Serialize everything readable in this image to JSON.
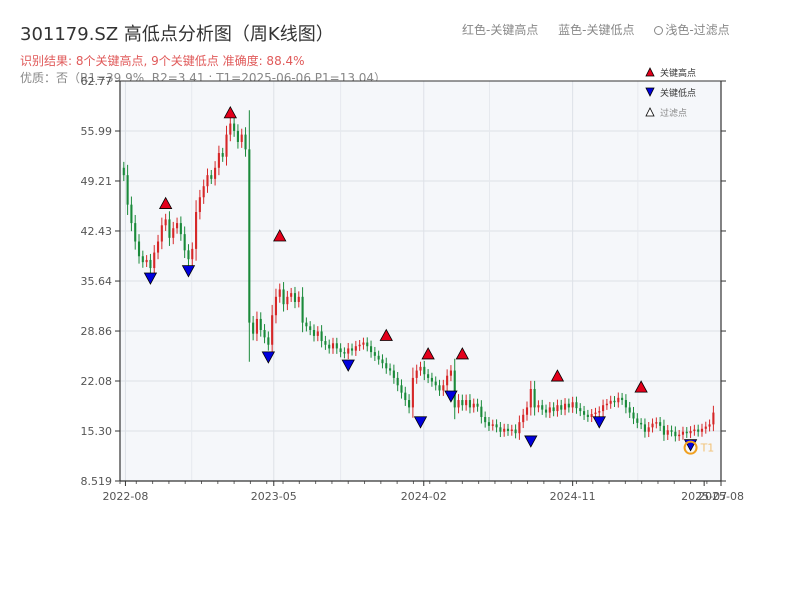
{
  "title": "301179.SZ 高低点分析图（周K线图）",
  "header_legend": {
    "red": "红色-关键高点",
    "blue": "蓝色-关键低点",
    "light": "浅色-过滤点"
  },
  "result_line": "识别结果: 8个关键高点, 9个关键低点  准确度: 88.4%",
  "quality_line": "优质：否（R1=39.9%, R2=3.41 ; T1=2025-06-06 P1=13.04）",
  "chart_data": {
    "type": "candlestick",
    "ylim": [
      8.519,
      62.77
    ],
    "yticks": [
      "62.77",
      "55.99",
      "49.21",
      "42.43",
      "35.64",
      "28.86",
      "22.08",
      "15.30",
      "8.519"
    ],
    "xticks": [
      "2022-08",
      "2023-05",
      "2024-02",
      "2024-11",
      "2025-07",
      "2025-08"
    ],
    "colors": {
      "up": "#d62728",
      "down": "#1a8a3a",
      "high": "#e3001b",
      "low": "#0000dd",
      "t1": "#f0a020"
    },
    "legend": [
      {
        "label": "关键高点",
        "marker": "triangle-up",
        "color": "#e3001b"
      },
      {
        "label": "关键低点",
        "marker": "triangle-down",
        "color": "#0000dd"
      },
      {
        "label": "过滤点",
        "marker": "triangle-up",
        "color": "#ffffff"
      }
    ],
    "key_highs": [
      {
        "date": "2022-10-14",
        "value": 45.2
      },
      {
        "date": "2023-02-10",
        "value": 57.5
      },
      {
        "date": "2023-05-12",
        "value": 40.8
      },
      {
        "date": "2023-11-24",
        "value": 27.3
      },
      {
        "date": "2024-02-09",
        "value": 24.8
      },
      {
        "date": "2024-04-12",
        "value": 24.8
      },
      {
        "date": "2024-10-04",
        "value": 21.8
      },
      {
        "date": "2025-03-07",
        "value": 20.3
      }
    ],
    "key_lows": [
      {
        "date": "2022-09-16",
        "value": 37.0
      },
      {
        "date": "2022-11-25",
        "value": 38.0
      },
      {
        "date": "2023-04-21",
        "value": 26.3
      },
      {
        "date": "2023-09-15",
        "value": 25.2
      },
      {
        "date": "2024-01-26",
        "value": 17.5
      },
      {
        "date": "2024-03-22",
        "value": 21.0
      },
      {
        "date": "2024-08-16",
        "value": 14.9
      },
      {
        "date": "2024-12-20",
        "value": 17.5
      },
      {
        "date": "2025-06-06",
        "value": 14.4
      }
    ],
    "t1_marker": {
      "date": "2025-06-06",
      "value": 13.04,
      "label": "T1"
    },
    "closes": [
      [
        "2022-07-29",
        50.0
      ],
      [
        "2022-08-05",
        46.0
      ],
      [
        "2022-08-12",
        43.5
      ],
      [
        "2022-08-19",
        41.0
      ],
      [
        "2022-08-26",
        39.0
      ],
      [
        "2022-09-02",
        38.2
      ],
      [
        "2022-09-09",
        38.5
      ],
      [
        "2022-09-16",
        37.4
      ],
      [
        "2022-09-23",
        39.5
      ],
      [
        "2022-09-30",
        41.0
      ],
      [
        "2022-10-07",
        43.2
      ],
      [
        "2022-10-14",
        44.0
      ],
      [
        "2022-10-21",
        41.5
      ],
      [
        "2022-10-28",
        42.8
      ],
      [
        "2022-11-04",
        43.5
      ],
      [
        "2022-11-11",
        42.0
      ],
      [
        "2022-11-18",
        39.8
      ],
      [
        "2022-11-25",
        38.6
      ],
      [
        "2022-12-02",
        40.0
      ],
      [
        "2022-12-09",
        45.0
      ],
      [
        "2022-12-16",
        47.0
      ],
      [
        "2022-12-23",
        48.5
      ],
      [
        "2022-12-30",
        50.0
      ],
      [
        "2023-01-06",
        49.5
      ],
      [
        "2023-01-13",
        51.0
      ],
      [
        "2023-01-20",
        53.0
      ],
      [
        "2023-01-27",
        52.5
      ],
      [
        "2023-02-03",
        55.5
      ],
      [
        "2023-02-10",
        57.0
      ],
      [
        "2023-02-17",
        56.0
      ],
      [
        "2023-02-24",
        54.5
      ],
      [
        "2023-03-03",
        55.5
      ],
      [
        "2023-03-10",
        53.5
      ],
      [
        "2023-03-17",
        30.0
      ],
      [
        "2023-03-24",
        28.5
      ],
      [
        "2023-03-31",
        30.5
      ],
      [
        "2023-04-07",
        29.0
      ],
      [
        "2023-04-14",
        28.0
      ],
      [
        "2023-04-21",
        27.0
      ],
      [
        "2023-04-28",
        31.0
      ],
      [
        "2023-05-05",
        33.5
      ],
      [
        "2023-05-12",
        34.5
      ],
      [
        "2023-05-19",
        32.5
      ],
      [
        "2023-05-26",
        33.5
      ],
      [
        "2023-06-02",
        34.0
      ],
      [
        "2023-06-09",
        32.8
      ],
      [
        "2023-06-16",
        33.5
      ],
      [
        "2023-06-23",
        30.0
      ],
      [
        "2023-06-30",
        29.5
      ],
      [
        "2023-07-07",
        29.0
      ],
      [
        "2023-07-14",
        28.2
      ],
      [
        "2023-07-21",
        28.8
      ],
      [
        "2023-07-28",
        27.5
      ],
      [
        "2023-08-04",
        27.0
      ],
      [
        "2023-08-11",
        26.5
      ],
      [
        "2023-08-18",
        27.2
      ],
      [
        "2023-08-25",
        26.5
      ],
      [
        "2023-09-01",
        26.0
      ],
      [
        "2023-09-08",
        25.8
      ],
      [
        "2023-09-15",
        26.5
      ],
      [
        "2023-09-22",
        26.2
      ],
      [
        "2023-09-29",
        26.8
      ],
      [
        "2023-10-06",
        27.0
      ],
      [
        "2023-10-13",
        27.3
      ],
      [
        "2023-10-20",
        26.8
      ],
      [
        "2023-10-27",
        26.0
      ],
      [
        "2023-11-03",
        25.5
      ],
      [
        "2023-11-10",
        25.0
      ],
      [
        "2023-11-17",
        24.5
      ],
      [
        "2023-11-24",
        23.8
      ],
      [
        "2023-12-01",
        23.5
      ],
      [
        "2023-12-08",
        22.5
      ],
      [
        "2023-12-15",
        21.5
      ],
      [
        "2023-12-22",
        20.5
      ],
      [
        "2023-12-29",
        19.5
      ],
      [
        "2024-01-05",
        18.5
      ],
      [
        "2024-01-12",
        22.5
      ],
      [
        "2024-01-19",
        23.5
      ],
      [
        "2024-01-26",
        24.0
      ],
      [
        "2024-02-02",
        23.0
      ],
      [
        "2024-02-09",
        22.5
      ],
      [
        "2024-02-16",
        22.0
      ],
      [
        "2024-02-23",
        21.5
      ],
      [
        "2024-03-01",
        20.8
      ],
      [
        "2024-03-08",
        21.5
      ],
      [
        "2024-03-15",
        22.8
      ],
      [
        "2024-03-22",
        23.5
      ],
      [
        "2024-03-29",
        18.5
      ],
      [
        "2024-04-05",
        19.5
      ],
      [
        "2024-04-12",
        18.8
      ],
      [
        "2024-04-19",
        19.5
      ],
      [
        "2024-04-26",
        18.5
      ],
      [
        "2024-05-03",
        19.0
      ],
      [
        "2024-05-10",
        18.6
      ],
      [
        "2024-05-17",
        17.2
      ],
      [
        "2024-05-24",
        16.5
      ],
      [
        "2024-05-31",
        16.0
      ],
      [
        "2024-06-07",
        16.2
      ],
      [
        "2024-06-14",
        15.8
      ],
      [
        "2024-06-21",
        15.2
      ],
      [
        "2024-06-28",
        15.6
      ],
      [
        "2024-07-05",
        15.3
      ],
      [
        "2024-07-12",
        15.5
      ],
      [
        "2024-07-19",
        15.0
      ],
      [
        "2024-07-26",
        16.5
      ],
      [
        "2024-08-02",
        17.5
      ],
      [
        "2024-08-09",
        18.5
      ],
      [
        "2024-08-16",
        21.0
      ],
      [
        "2024-08-23",
        18.5
      ],
      [
        "2024-08-30",
        18.8
      ],
      [
        "2024-09-06",
        18.2
      ],
      [
        "2024-09-13",
        17.8
      ],
      [
        "2024-09-20",
        18.5
      ],
      [
        "2024-09-27",
        18.0
      ],
      [
        "2024-10-04",
        18.8
      ],
      [
        "2024-10-11",
        18.2
      ],
      [
        "2024-10-18",
        19.0
      ],
      [
        "2024-10-25",
        18.5
      ],
      [
        "2024-11-01",
        19.2
      ],
      [
        "2024-11-08",
        18.4
      ],
      [
        "2024-11-15",
        18.0
      ],
      [
        "2024-11-22",
        17.5
      ],
      [
        "2024-11-29",
        17.2
      ],
      [
        "2024-12-06",
        17.6
      ],
      [
        "2024-12-13",
        17.8
      ],
      [
        "2024-12-20",
        18.0
      ],
      [
        "2024-12-27",
        18.8
      ],
      [
        "2025-01-03",
        19.0
      ],
      [
        "2025-01-10",
        19.4
      ],
      [
        "2025-01-17",
        19.2
      ],
      [
        "2025-01-24",
        19.8
      ],
      [
        "2025-01-31",
        19.5
      ],
      [
        "2025-02-07",
        18.5
      ],
      [
        "2025-02-14",
        17.8
      ],
      [
        "2025-02-21",
        17.0
      ],
      [
        "2025-02-28",
        16.4
      ],
      [
        "2025-03-07",
        16.2
      ],
      [
        "2025-03-14",
        15.2
      ],
      [
        "2025-03-21",
        15.8
      ],
      [
        "2025-03-28",
        16.3
      ],
      [
        "2025-04-04",
        16.5
      ],
      [
        "2025-04-11",
        16.0
      ],
      [
        "2025-04-18",
        14.8
      ],
      [
        "2025-04-25",
        15.4
      ],
      [
        "2025-05-02",
        15.2
      ],
      [
        "2025-05-09",
        14.6
      ],
      [
        "2025-05-16",
        14.8
      ],
      [
        "2025-05-23",
        15.2
      ],
      [
        "2025-05-30",
        15.0
      ],
      [
        "2025-06-06",
        15.3
      ],
      [
        "2025-06-13",
        15.5
      ],
      [
        "2025-06-20",
        15.2
      ],
      [
        "2025-06-27",
        15.6
      ],
      [
        "2025-07-04",
        15.9
      ],
      [
        "2025-07-11",
        16.2
      ],
      [
        "2025-07-18",
        17.8
      ]
    ]
  }
}
